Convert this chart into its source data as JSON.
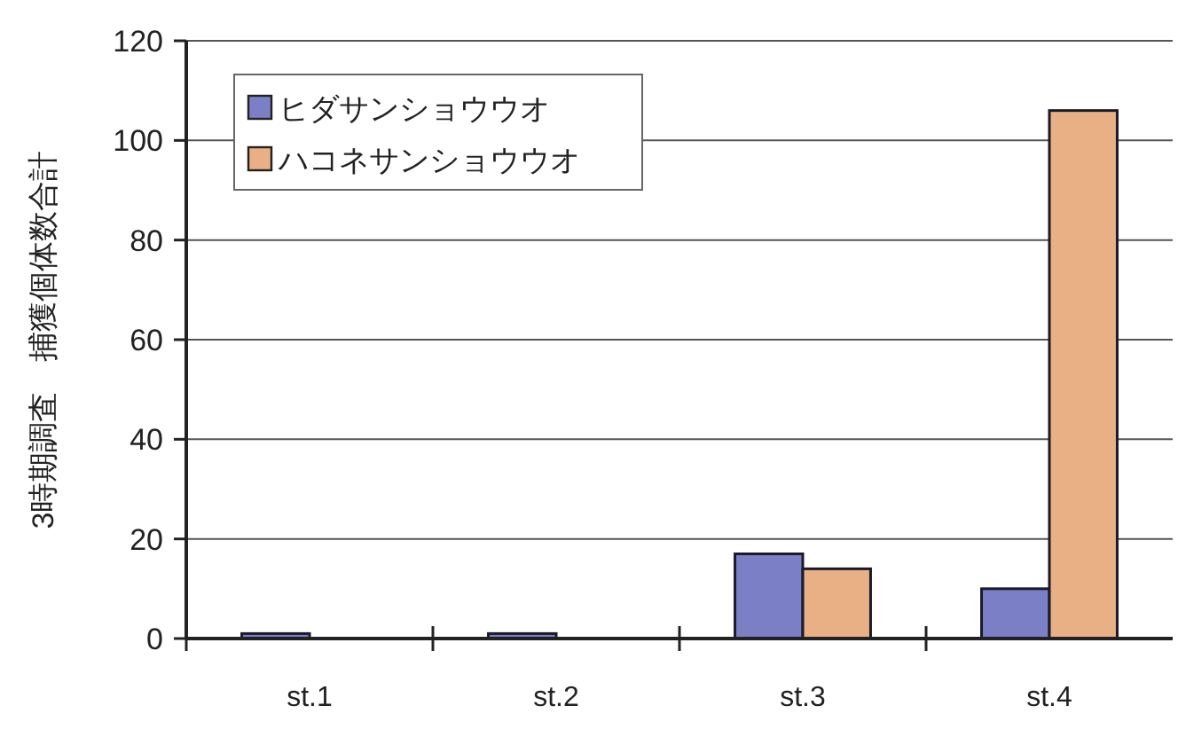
{
  "chart_data": {
    "type": "bar",
    "ylabel": "3時期調査　捕獲個体数合計",
    "categories": [
      "st.1",
      "st.2",
      "st.3",
      "st.4"
    ],
    "series": [
      {
        "name": "ヒダサンショウウオ",
        "color": "#7b80c6",
        "values": [
          1,
          1,
          17,
          10
        ]
      },
      {
        "name": "ハコネサンショウウオ",
        "color": "#e8b084",
        "values": [
          0,
          0,
          14,
          106
        ]
      }
    ],
    "ylim": [
      0,
      120
    ],
    "yticks": [
      0,
      20,
      40,
      60,
      80,
      100,
      120
    ],
    "grid": "y",
    "legend": "top left"
  }
}
